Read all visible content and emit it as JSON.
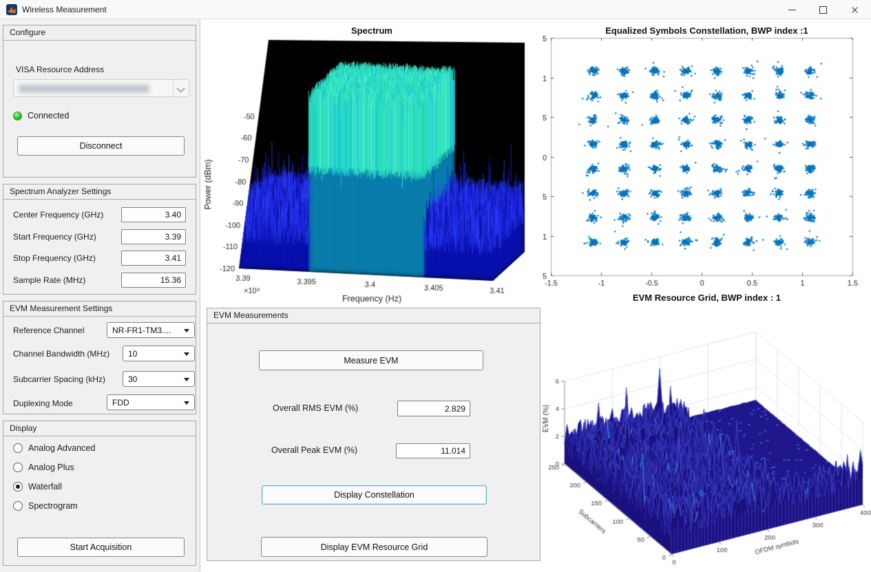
{
  "window": {
    "title": "Wireless Measurement"
  },
  "colors": {
    "connected_green": "#2ec12e",
    "focus_blue": "#62aede",
    "constellation_marker": "#0072BD",
    "surface_fill": "#1a117e",
    "surface_edge": "#3f51e0"
  },
  "sidebar": {
    "configure": {
      "title": "Configure",
      "visa_label": "VISA Resource Address",
      "status_label": "Connected",
      "disconnect_button": "Disconnect"
    },
    "spectrum_settings": {
      "title": "Spectrum Analyzer Settings",
      "fields": [
        {
          "label": "Center Frequency (GHz)",
          "value": "3.40"
        },
        {
          "label": "Start Frequency (GHz)",
          "value": "3.39"
        },
        {
          "label": "Stop Frequency (GHz)",
          "value": "3.41"
        },
        {
          "label": "Sample Rate (MHz)",
          "value": "15.36"
        }
      ]
    },
    "evm_settings": {
      "title": "EVM Measurement Settings",
      "fields": [
        {
          "label": "Reference Channel",
          "value": "NR-FR1-TM3...."
        },
        {
          "label": "Channel Bandwidth (MHz)",
          "value": "10"
        },
        {
          "label": "Subcarrier Spacing (kHz)",
          "value": "30"
        },
        {
          "label": "Duplexing Mode",
          "value": "FDD"
        }
      ]
    },
    "display": {
      "title": "Display",
      "options": [
        {
          "label": "Analog Advanced",
          "selected": false
        },
        {
          "label": "Analog Plus",
          "selected": false
        },
        {
          "label": "Waterfall",
          "selected": true
        },
        {
          "label": "Spectrogram",
          "selected": false
        }
      ],
      "start_button": "Start Acquisition"
    }
  },
  "evm_panel": {
    "title": "EVM Measurements",
    "measure_button": "Measure EVM",
    "rms_label": "Overall RMS EVM (%)",
    "rms_value": "2.829",
    "peak_label": "Overall Peak EVM (%)",
    "peak_value": "11.014",
    "constellation_button": "Display Constellation",
    "resource_grid_button": "Display EVM Resource Grid"
  },
  "chart_data": [
    {
      "type": "line",
      "style": "3d-waterfall-spectrum",
      "title": "Spectrum",
      "xlabel": "Frequency (Hz)",
      "ylabel": "Power (dBm)",
      "x_tick_labels": [
        "3.39",
        "3.395",
        "3.4",
        "3.405",
        "3.41"
      ],
      "x_exponent": "×10⁹",
      "y_tick_labels": [
        "-50",
        "-60",
        "-70",
        "-80",
        "-90",
        "-100",
        "-110",
        "-120"
      ],
      "xlim_ghz": [
        3.39,
        3.41
      ],
      "ylim_dbm": [
        -120,
        -50
      ],
      "signal_band_ghz": [
        3.395,
        3.405
      ],
      "signal_level_dbm": -42,
      "noise_floor_dbm": -95,
      "background": "#000000"
    },
    {
      "type": "scatter",
      "title": "Equalized Symbols Constellation, BWP index :1",
      "tick_labels": [
        "-1.5",
        "-1",
        "-0.5",
        "0",
        "0.5",
        "1",
        "1.5"
      ],
      "xlim": [
        -1.5,
        1.5
      ],
      "ylim": [
        -1.5,
        1.5
      ],
      "modulation": "64QAM",
      "ideal_levels": [
        -1.0801,
        -0.7715,
        -0.4629,
        -0.1543,
        0.1543,
        0.4629,
        0.7715,
        1.0801
      ],
      "marker_color": "#0072BD",
      "points_per_cluster": 60,
      "cluster_sigma": 0.022
    },
    {
      "type": "surface",
      "title": "EVM Resource Grid, BWP index : 1",
      "xlabel": "OFDM symbols",
      "ylabel": "Subcarriers",
      "zlabel": "EVM (%)",
      "x_tick_labels": [
        "0",
        "100",
        "200",
        "300",
        "400"
      ],
      "y_tick_labels": [
        "0",
        "50",
        "100",
        "150",
        "200",
        "250"
      ],
      "z_tick_labels": [
        "0",
        "2",
        "4",
        "6"
      ],
      "xlim": [
        0,
        400
      ],
      "ylim": [
        0,
        250
      ],
      "zlim": [
        0,
        6
      ],
      "mean_evm_pct": 2.0,
      "flat_region": {
        "symbols": [
          235,
          400
        ],
        "evm": 1.0
      },
      "surface_color": "#1a117e",
      "edge_color": "#3f51e0"
    }
  ]
}
